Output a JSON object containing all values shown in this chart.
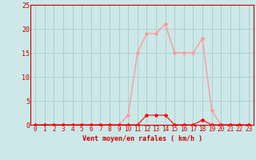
{
  "title": "",
  "xlabel": "Vent moyen/en rafales ( km/h )",
  "ylabel": "",
  "background_color": "#cce8e8",
  "grid_color": "#aacccc",
  "line_color_gust": "#ff9999",
  "line_color_mean": "#ff0000",
  "x_values": [
    0,
    1,
    2,
    3,
    4,
    5,
    6,
    7,
    8,
    9,
    10,
    11,
    12,
    13,
    14,
    15,
    16,
    17,
    18,
    19,
    20,
    21,
    22,
    23
  ],
  "y_mean": [
    0,
    0,
    0,
    0,
    0,
    0,
    0,
    0,
    0,
    0,
    0,
    0,
    2,
    2,
    2,
    0,
    0,
    0,
    1,
    0,
    0,
    0,
    0,
    0
  ],
  "y_gust": [
    0,
    0,
    0,
    0,
    0,
    0,
    0,
    0,
    0,
    0,
    2,
    15,
    19,
    19,
    21,
    15,
    15,
    15,
    18,
    3,
    0,
    0,
    0,
    0
  ],
  "xlim": [
    -0.5,
    23.5
  ],
  "ylim": [
    0,
    25
  ],
  "yticks": [
    0,
    5,
    10,
    15,
    20,
    25
  ],
  "xticks": [
    0,
    1,
    2,
    3,
    4,
    5,
    6,
    7,
    8,
    9,
    10,
    11,
    12,
    13,
    14,
    15,
    16,
    17,
    18,
    19,
    20,
    21,
    22,
    23
  ]
}
